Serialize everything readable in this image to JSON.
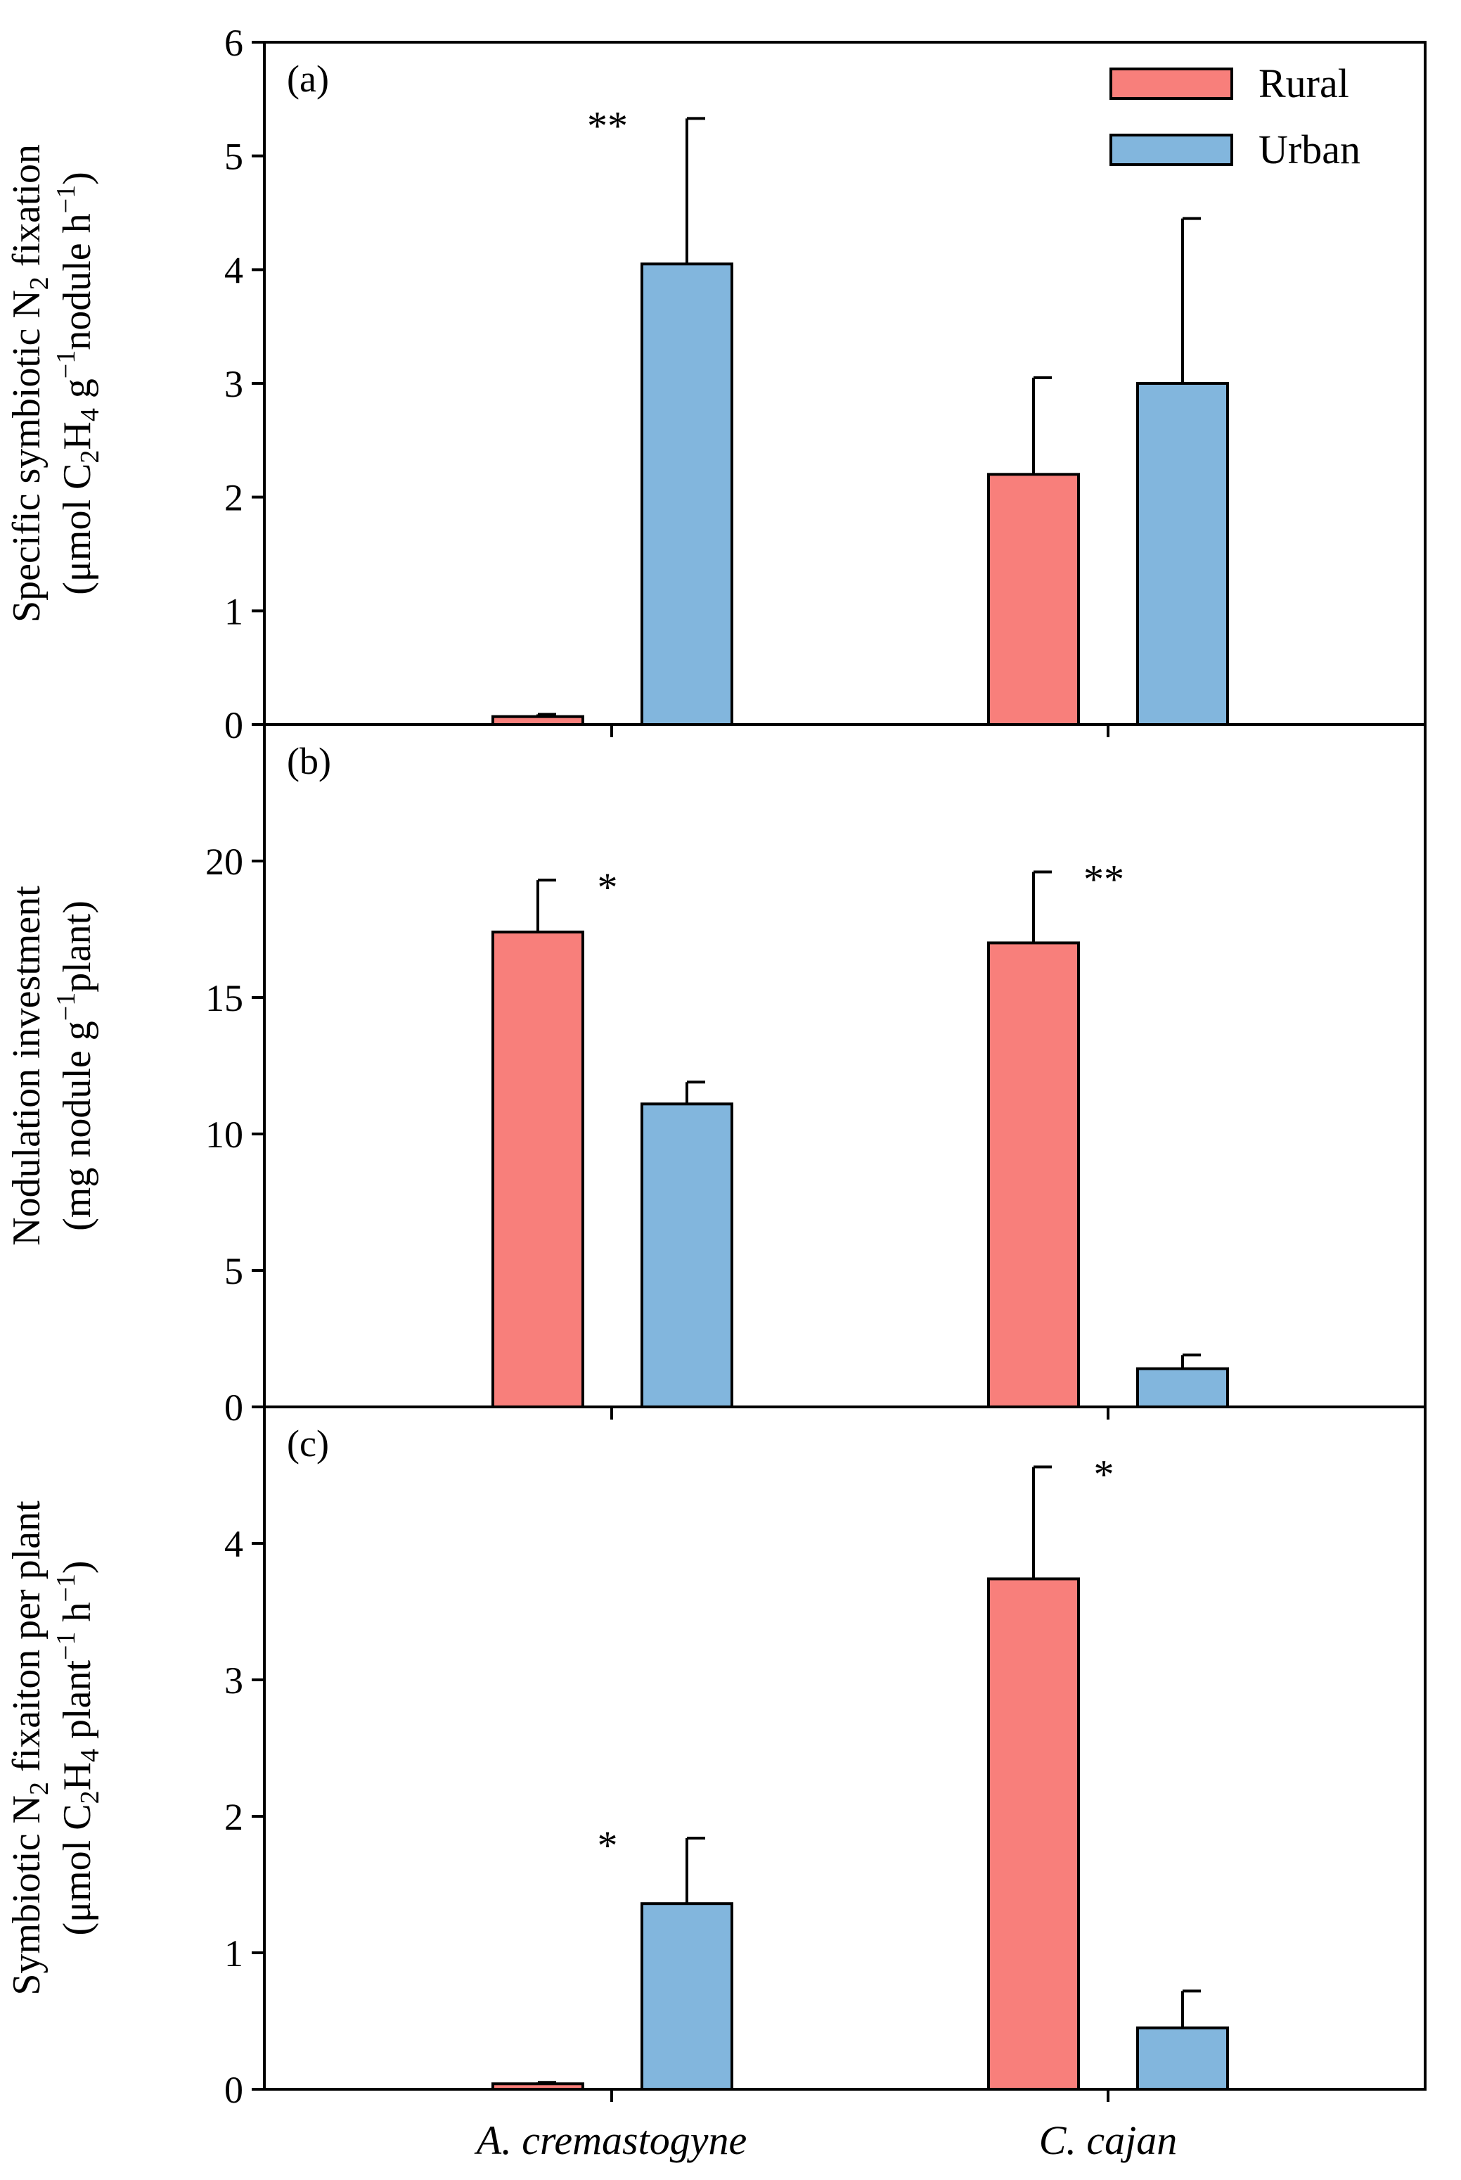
{
  "chart_data": [
    {
      "type": "bar",
      "panel": "(a)",
      "categories": [
        "A. cremastogyne",
        "C. cajan"
      ],
      "ylim": [
        0,
        6
      ],
      "yticks": [
        0,
        1,
        2,
        3,
        4,
        5,
        6
      ],
      "ylabel_line1": {
        "pre": "Specific symbiotic N",
        "sub": "2",
        "post": " fixation"
      },
      "ylabel_line2": {
        "parts": [
          {
            "t": "(μmol C"
          },
          {
            "t": "2",
            "k": "sub"
          },
          {
            "t": "H"
          },
          {
            "t": "4",
            "k": "sub"
          },
          {
            "t": " g"
          },
          {
            "t": "−1",
            "k": "sup"
          },
          {
            "t": "nodule h"
          },
          {
            "t": "−1",
            "k": "sup"
          },
          {
            "t": ")"
          }
        ]
      },
      "series": [
        {
          "name": "Rural",
          "values": [
            0.07,
            2.2
          ],
          "errors": [
            0.02,
            0.85
          ]
        },
        {
          "name": "Urban",
          "values": [
            4.05,
            3.0
          ],
          "errors": [
            1.28,
            1.45
          ]
        }
      ],
      "significance": [
        "**",
        ""
      ]
    },
    {
      "type": "bar",
      "panel": "(b)",
      "categories": [
        "A. cremastogyne",
        "C. cajan"
      ],
      "ylim": [
        0,
        25
      ],
      "yticks": [
        0,
        5,
        10,
        15,
        20
      ],
      "ylabel_line1": {
        "pre": "Nodulation investment",
        "sub": "",
        "post": ""
      },
      "ylabel_line2": {
        "parts": [
          {
            "t": "(mg nodule g"
          },
          {
            "t": "−1",
            "k": "sup"
          },
          {
            "t": "plant)"
          }
        ]
      },
      "series": [
        {
          "name": "Rural",
          "values": [
            17.4,
            17.0
          ],
          "errors": [
            1.9,
            2.6
          ]
        },
        {
          "name": "Urban",
          "values": [
            11.1,
            1.4
          ],
          "errors": [
            0.8,
            0.5
          ]
        }
      ],
      "significance": [
        "*",
        "**"
      ]
    },
    {
      "type": "bar",
      "panel": "(c)",
      "categories": [
        "A. cremastogyne",
        "C. cajan"
      ],
      "ylim": [
        0,
        5
      ],
      "yticks": [
        0,
        1,
        2,
        3,
        4
      ],
      "ylabel_line1": {
        "pre": "Symbiotic N",
        "sub": "2",
        "post": " fixaiton per plant"
      },
      "ylabel_line2": {
        "parts": [
          {
            "t": "(μmol C"
          },
          {
            "t": "2",
            "k": "sub"
          },
          {
            "t": "H"
          },
          {
            "t": "4",
            "k": "sub"
          },
          {
            "t": " plant"
          },
          {
            "t": "−1",
            "k": "sup"
          },
          {
            "t": " h"
          },
          {
            "t": "−1",
            "k": "sup"
          },
          {
            "t": ")"
          }
        ]
      },
      "series": [
        {
          "name": "Rural",
          "values": [
            0.04,
            3.74
          ],
          "errors": [
            0.01,
            0.82
          ]
        },
        {
          "name": "Urban",
          "values": [
            1.36,
            0.45
          ],
          "errors": [
            0.48,
            0.27
          ]
        }
      ],
      "significance": [
        "*",
        "*"
      ]
    }
  ],
  "legend": {
    "placement": "top-right",
    "items": [
      {
        "name": "Rural",
        "color": "#f87f7b"
      },
      {
        "name": "Urban",
        "color": "#82b6dd"
      }
    ]
  },
  "categories": [
    "A. cremastogyne",
    "C. cajan"
  ]
}
